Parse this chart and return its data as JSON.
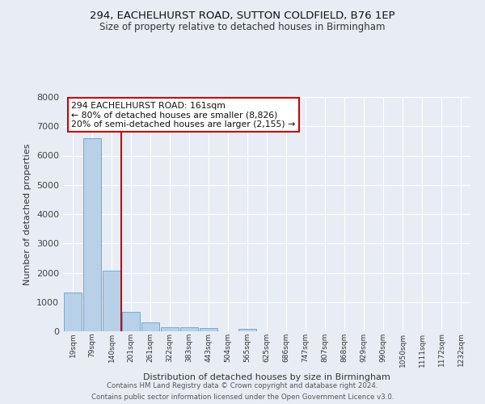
{
  "title_line1": "294, EACHELHURST ROAD, SUTTON COLDFIELD, B76 1EP",
  "title_line2": "Size of property relative to detached houses in Birmingham",
  "xlabel": "Distribution of detached houses by size in Birmingham",
  "ylabel": "Number of detached properties",
  "categories": [
    "19sqm",
    "79sqm",
    "140sqm",
    "201sqm",
    "261sqm",
    "322sqm",
    "383sqm",
    "443sqm",
    "504sqm",
    "565sqm",
    "625sqm",
    "686sqm",
    "747sqm",
    "807sqm",
    "868sqm",
    "929sqm",
    "990sqm",
    "1050sqm",
    "1111sqm",
    "1172sqm",
    "1232sqm"
  ],
  "bar_values": [
    1320,
    6600,
    2080,
    650,
    300,
    145,
    130,
    110,
    0,
    90,
    0,
    0,
    0,
    0,
    0,
    0,
    0,
    0,
    0,
    0,
    0
  ],
  "bar_color": "#b8d0e8",
  "bar_edge_color": "#6aa0c8",
  "background_color": "#e8edf5",
  "grid_color": "#ffffff",
  "red_line_color": "#cc0000",
  "annotation_text": "294 EACHELHURST ROAD: 161sqm\n← 80% of detached houses are smaller (8,826)\n20% of semi-detached houses are larger (2,155) →",
  "annotation_box_color": "#ffffff",
  "annotation_box_edge_color": "#cc0000",
  "ylim": [
    0,
    8000
  ],
  "yticks": [
    0,
    1000,
    2000,
    3000,
    4000,
    5000,
    6000,
    7000,
    8000
  ],
  "footer_line1": "Contains HM Land Registry data © Crown copyright and database right 2024.",
  "footer_line2": "Contains public sector information licensed under the Open Government Licence v3.0."
}
